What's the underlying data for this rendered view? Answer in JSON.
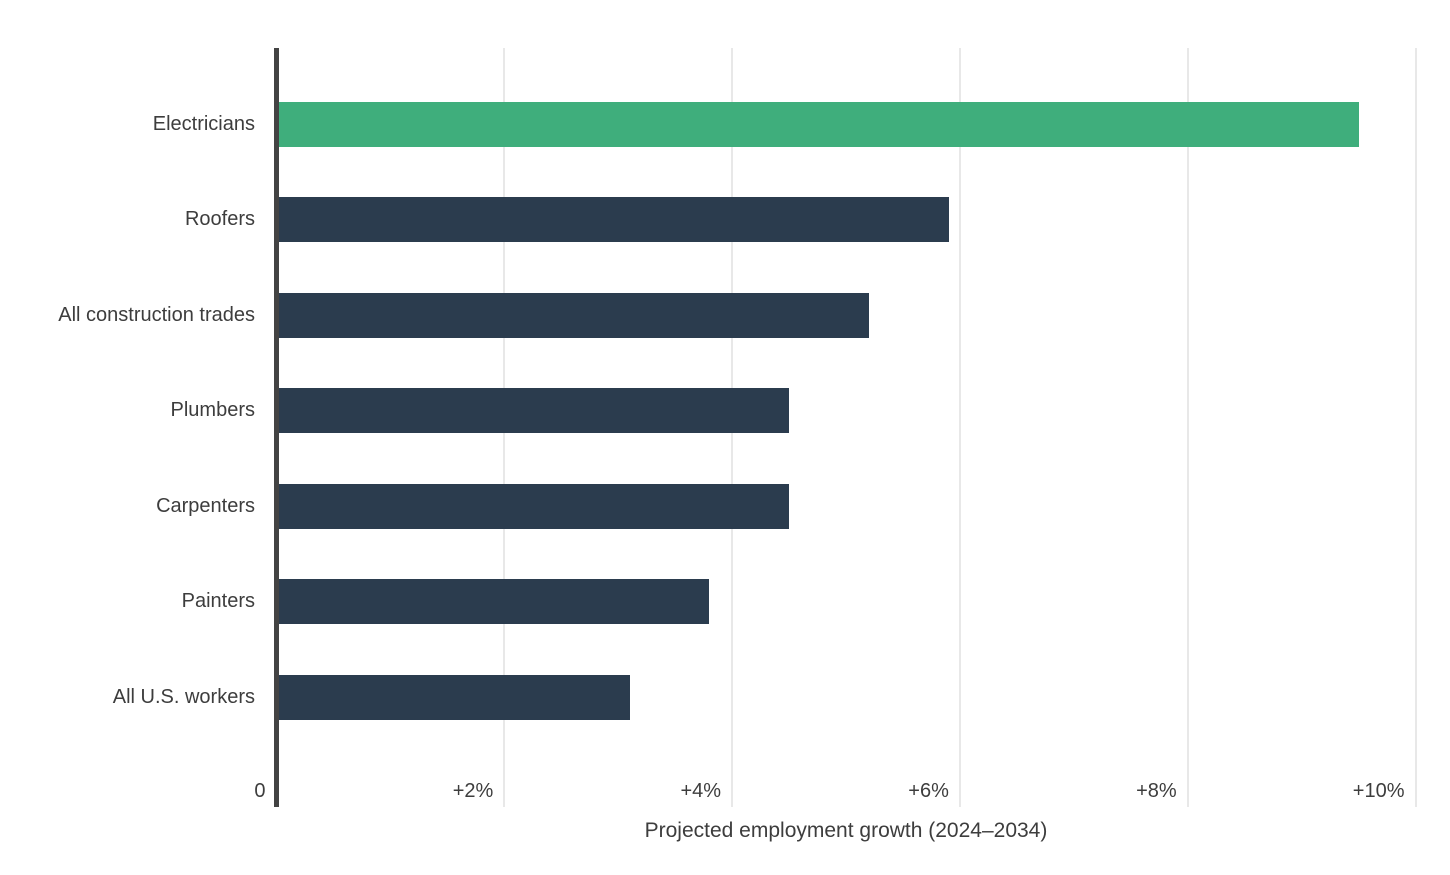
{
  "chart_data": {
    "type": "bar",
    "orientation": "horizontal",
    "title": "",
    "xlabel": "Projected employment growth (2024–2034)",
    "categories": [
      "Electricians",
      "Roofers",
      "All construction trades",
      "Plumbers",
      "Carpenters",
      "Painters",
      "All U.S. workers"
    ],
    "values": [
      9.5,
      5.9,
      5.2,
      4.5,
      4.5,
      3.8,
      3.1
    ],
    "unit": "%",
    "xlim": [
      0,
      10
    ],
    "x_ticks": [
      {
        "value": 0,
        "label": "0"
      },
      {
        "value": 2,
        "label": "+2%"
      },
      {
        "value": 4,
        "label": "+4%"
      },
      {
        "value": 6,
        "label": "+6%"
      },
      {
        "value": 8,
        "label": "+8%"
      },
      {
        "value": 10,
        "label": "+10%"
      }
    ],
    "highlight_category": "Electricians",
    "legend": false,
    "grid": true,
    "colors": {
      "highlight_bar": "#3fae7c",
      "default_bar": "#2b3c4e",
      "gridline": "#e8e8e8",
      "axis_line": "#434343",
      "text": "#3d3d3d",
      "background": "#ffffff"
    }
  }
}
